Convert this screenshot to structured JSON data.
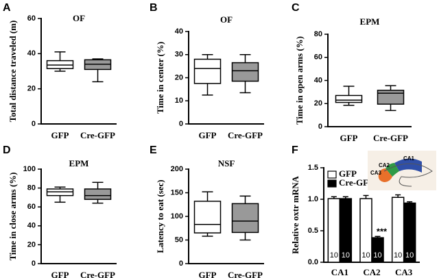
{
  "chart_data": [
    {
      "type": "box",
      "panel": "A",
      "title": "OF",
      "ylabel": "Total distance traveled (m)",
      "categories": [
        "GFP",
        "Cre-GFP"
      ],
      "colors": [
        "#ffffff",
        "#999999"
      ],
      "values": [
        {
          "min": 30,
          "q1": 31.5,
          "median": 33.5,
          "q3": 36,
          "max": 41
        },
        {
          "min": 24,
          "q1": 31,
          "median": 34,
          "q3": 36.5,
          "max": 37
        }
      ],
      "ylim": [
        0,
        60
      ],
      "yticks": [
        0,
        20,
        40,
        60
      ]
    },
    {
      "type": "box",
      "panel": "B",
      "title": "OF",
      "ylabel": "Time in center  (%)",
      "categories": [
        "GFP",
        "Cre-GFP"
      ],
      "colors": [
        "#ffffff",
        "#999999"
      ],
      "values": [
        {
          "min": 12.5,
          "q1": 17.5,
          "median": 24,
          "q3": 28,
          "max": 30
        },
        {
          "min": 13.5,
          "q1": 18.5,
          "median": 23,
          "q3": 26.5,
          "max": 30
        }
      ],
      "ylim": [
        0,
        40
      ],
      "yticks": [
        0,
        10,
        20,
        30,
        40
      ]
    },
    {
      "type": "box",
      "panel": "C",
      "title": "EPM",
      "ylabel": "Time in open arms (%)",
      "categories": [
        "GFP",
        "Cre-GFP"
      ],
      "colors": [
        "#ffffff",
        "#999999"
      ],
      "values": [
        {
          "min": 18.5,
          "q1": 21,
          "median": 23,
          "q3": 27,
          "max": 35
        },
        {
          "min": 14,
          "q1": 19.5,
          "median": 29,
          "q3": 31.5,
          "max": 35.5
        }
      ],
      "ylim": [
        0,
        80
      ],
      "yticks": [
        0,
        20,
        40,
        60,
        80
      ]
    },
    {
      "type": "box",
      "panel": "D",
      "title": "EPM",
      "ylabel": "Time in close arms (%)",
      "categories": [
        "GFP",
        "Cre-GFP"
      ],
      "colors": [
        "#ffffff",
        "#999999"
      ],
      "values": [
        {
          "min": 65,
          "q1": 72,
          "median": 76,
          "q3": 79,
          "max": 81
        },
        {
          "min": 64,
          "q1": 68,
          "median": 72,
          "q3": 79,
          "max": 86
        }
      ],
      "ylim": [
        0,
        100
      ],
      "yticks": [
        0,
        20,
        40,
        60,
        80,
        100
      ]
    },
    {
      "type": "box",
      "panel": "E",
      "title": "NSF",
      "ylabel": "Latency to eat (sec)",
      "categories": [
        "GFP",
        "Cre-GFP"
      ],
      "colors": [
        "#ffffff",
        "#999999"
      ],
      "values": [
        {
          "min": 58,
          "q1": 65,
          "median": 83,
          "q3": 132,
          "max": 152
        },
        {
          "min": 50,
          "q1": 66,
          "median": 90,
          "q3": 127,
          "max": 143
        }
      ],
      "ylim": [
        0,
        200
      ],
      "yticks": [
        0,
        50,
        100,
        150,
        200
      ]
    },
    {
      "type": "bar",
      "panel": "F",
      "ylabel": "Relative oxtr mRNA",
      "categories": [
        "CA1",
        "CA2",
        "CA3"
      ],
      "series": [
        {
          "name": "GFP",
          "color": "#ffffff",
          "values": [
            1.01,
            1.01,
            1.03
          ],
          "errors": [
            0.03,
            0.05,
            0.04
          ],
          "sample_sizes": [
            10,
            10,
            10
          ]
        },
        {
          "name": "Cre-GFP",
          "color": "#000000",
          "values": [
            1.01,
            0.39,
            0.94
          ],
          "errors": [
            0.03,
            0.02,
            0.02
          ],
          "sample_sizes": [
            10,
            10,
            10
          ]
        }
      ],
      "annotation": "***",
      "inset_labels": [
        "CA1",
        "CA2",
        "CA3"
      ],
      "ylim": [
        0,
        1.5
      ],
      "yticks": [
        {
          "value": 0,
          "label": "0.0"
        },
        0.5,
        {
          "value": 1,
          "label": "1.0"
        },
        1.5
      ]
    }
  ]
}
